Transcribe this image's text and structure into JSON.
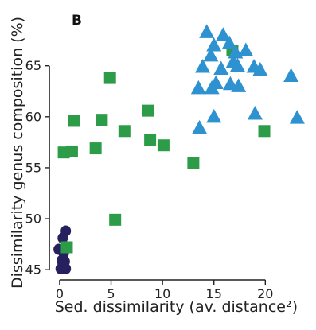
{
  "chart_data": {
    "type": "scatter",
    "panel_label": "B",
    "xlabel": "Sed. dissimilarity  (av. distance²)",
    "ylabel": "Dissimilarity genus composition (%)",
    "xlim": [
      -1,
      24
    ],
    "ylim": [
      44,
      69.5
    ],
    "xticks": [
      0,
      5,
      10,
      15,
      20
    ],
    "yticks": [
      45,
      50,
      55,
      60,
      65
    ],
    "grid": false,
    "legend": "none",
    "series": [
      {
        "marker": "circle",
        "color": "#26215e",
        "points": [
          [
            0.6,
            48.8
          ],
          [
            0.3,
            48.1
          ],
          [
            -0.1,
            47.0
          ],
          [
            0.4,
            46.6
          ],
          [
            0.2,
            45.9
          ],
          [
            0.5,
            45.8
          ],
          [
            0.1,
            45.1
          ],
          [
            0.6,
            45.1
          ]
        ]
      },
      {
        "marker": "square",
        "color": "#2d9c49",
        "points": [
          [
            0.4,
            56.5
          ],
          [
            1.2,
            56.6
          ],
          [
            1.4,
            59.6
          ],
          [
            3.5,
            56.9
          ],
          [
            4.1,
            59.7
          ],
          [
            4.9,
            63.8
          ],
          [
            5.4,
            49.9
          ],
          [
            6.3,
            58.6
          ],
          [
            8.6,
            60.6
          ],
          [
            8.8,
            57.7
          ],
          [
            10.1,
            57.2
          ],
          [
            13.0,
            55.5
          ],
          [
            16.8,
            66.5
          ],
          [
            19.9,
            58.6
          ],
          [
            0.7,
            47.2
          ]
        ]
      },
      {
        "marker": "triangle",
        "color": "#2e91d0",
        "points": [
          [
            14.3,
            68.3
          ],
          [
            15.9,
            68.0
          ],
          [
            16.5,
            67.2
          ],
          [
            15.0,
            67.0
          ],
          [
            17.1,
            66.3
          ],
          [
            18.1,
            66.5
          ],
          [
            14.7,
            66.0
          ],
          [
            16.9,
            65.4
          ],
          [
            13.9,
            64.9
          ],
          [
            15.7,
            64.7
          ],
          [
            17.3,
            65.0
          ],
          [
            18.9,
            64.9
          ],
          [
            19.5,
            64.6
          ],
          [
            22.5,
            64.0
          ],
          [
            15.2,
            63.3
          ],
          [
            14.8,
            62.8
          ],
          [
            13.5,
            62.8
          ],
          [
            16.6,
            63.2
          ],
          [
            17.4,
            63.0
          ],
          [
            15.0,
            60.0
          ],
          [
            19.0,
            60.3
          ],
          [
            23.1,
            59.9
          ],
          [
            13.6,
            58.9
          ]
        ]
      }
    ]
  }
}
